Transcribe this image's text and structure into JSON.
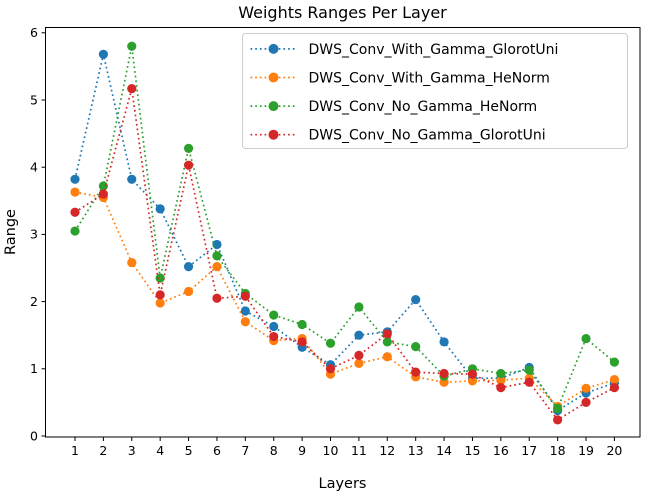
{
  "chart_data": {
    "type": "line",
    "title": "Weights Ranges Per Layer",
    "xlabel": "Layers",
    "ylabel": "Range",
    "linestyle": "dotted",
    "marker": "o",
    "grid": false,
    "legend_position": "upper right",
    "xticks": [
      1,
      2,
      3,
      4,
      5,
      6,
      7,
      8,
      9,
      10,
      11,
      12,
      13,
      14,
      15,
      16,
      17,
      18,
      19,
      20
    ],
    "yticks": [
      0,
      1,
      2,
      3,
      4,
      5,
      6
    ],
    "xlim": [
      0,
      21
    ],
    "ylim": [
      0,
      6.08
    ],
    "x": [
      1,
      2,
      3,
      4,
      5,
      6,
      7,
      8,
      9,
      10,
      11,
      12,
      13,
      14,
      15,
      16,
      17,
      18,
      19,
      20
    ],
    "series": [
      {
        "name": "DWS_Conv_With_Gamma_GlorotUni",
        "color": "#1f77b4",
        "values": [
          3.82,
          5.68,
          3.82,
          3.38,
          2.52,
          2.85,
          1.86,
          1.63,
          1.32,
          1.06,
          1.5,
          1.55,
          2.03,
          1.4,
          0.86,
          0.86,
          1.02,
          0.38,
          0.64,
          0.79
        ]
      },
      {
        "name": "DWS_Conv_With_Gamma_HeNorm",
        "color": "#ff7f0e",
        "values": [
          3.63,
          3.55,
          2.58,
          1.98,
          2.15,
          2.52,
          1.7,
          1.42,
          1.45,
          0.92,
          1.08,
          1.18,
          0.88,
          0.8,
          0.82,
          0.83,
          0.86,
          0.44,
          0.71,
          0.84
        ]
      },
      {
        "name": "DWS_Conv_No_Gamma_HeNorm",
        "color": "#2ca02c",
        "values": [
          3.05,
          3.72,
          5.8,
          2.35,
          4.28,
          2.68,
          2.12,
          1.8,
          1.66,
          1.38,
          1.92,
          1.4,
          1.33,
          0.89,
          1.0,
          0.93,
          0.98,
          0.41,
          1.45,
          1.1
        ]
      },
      {
        "name": "DWS_Conv_No_Gamma_GlorotUni",
        "color": "#d62728",
        "values": [
          3.33,
          3.6,
          5.17,
          2.1,
          4.03,
          2.05,
          2.08,
          1.48,
          1.4,
          1.0,
          1.2,
          1.52,
          0.95,
          0.93,
          0.92,
          0.72,
          0.8,
          0.24,
          0.5,
          0.72
        ]
      }
    ]
  }
}
